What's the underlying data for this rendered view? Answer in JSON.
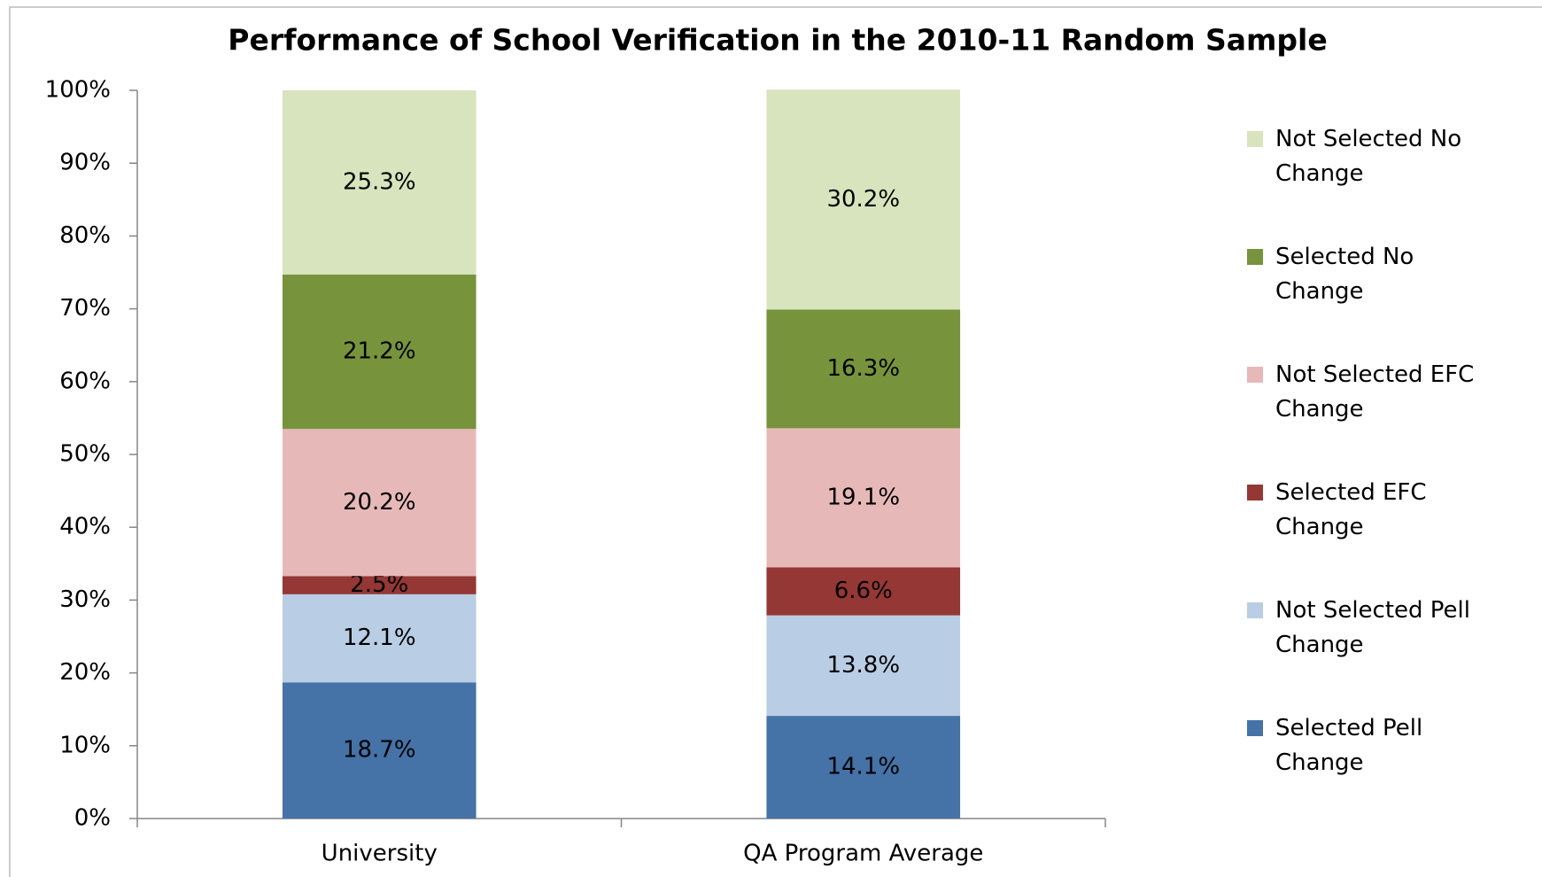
{
  "chart_data": {
    "type": "stacked_bar",
    "title": "Performance of School Verification in the 2010-11 Random Sample",
    "categories": [
      "University",
      "QA Program Average"
    ],
    "series": [
      {
        "name": "Selected Pell Change",
        "color": "#4572a7",
        "values": [
          18.7,
          14.1
        ],
        "value_labels": [
          "18.7%",
          "14.1%"
        ]
      },
      {
        "name": "Not Selected Pell Change",
        "color": "#b9cde5",
        "values": [
          12.1,
          13.8
        ],
        "value_labels": [
          "12.1%",
          "13.8%"
        ]
      },
      {
        "name": "Selected EFC Change",
        "color": "#953735",
        "values": [
          2.5,
          6.6
        ],
        "value_labels": [
          "2.5%",
          "6.6%"
        ]
      },
      {
        "name": "Not Selected EFC Change",
        "color": "#e6b9b8",
        "values": [
          20.2,
          19.1
        ],
        "value_labels": [
          "20.2%",
          "19.1%"
        ]
      },
      {
        "name": "Selected No Change",
        "color": "#77933c",
        "values": [
          21.2,
          16.3
        ],
        "value_labels": [
          "21.2%",
          "16.3%"
        ]
      },
      {
        "name": "Not Selected No Change",
        "color": "#d7e4bd",
        "values": [
          25.3,
          30.2
        ],
        "value_labels": [
          "25.3%",
          "30.2%"
        ]
      }
    ],
    "ylim": [
      0,
      100
    ],
    "yticks": [
      {
        "value": 0,
        "label": "0%"
      },
      {
        "value": 10,
        "label": "10%"
      },
      {
        "value": 20,
        "label": "20%"
      },
      {
        "value": 30,
        "label": "30%"
      },
      {
        "value": 40,
        "label": "40%"
      },
      {
        "value": 50,
        "label": "50%"
      },
      {
        "value": 60,
        "label": "60%"
      },
      {
        "value": 70,
        "label": "70%"
      },
      {
        "value": 80,
        "label": "80%"
      },
      {
        "value": 90,
        "label": "90%"
      },
      {
        "value": 100,
        "label": "100%"
      }
    ],
    "grid": false,
    "legend": "right"
  }
}
